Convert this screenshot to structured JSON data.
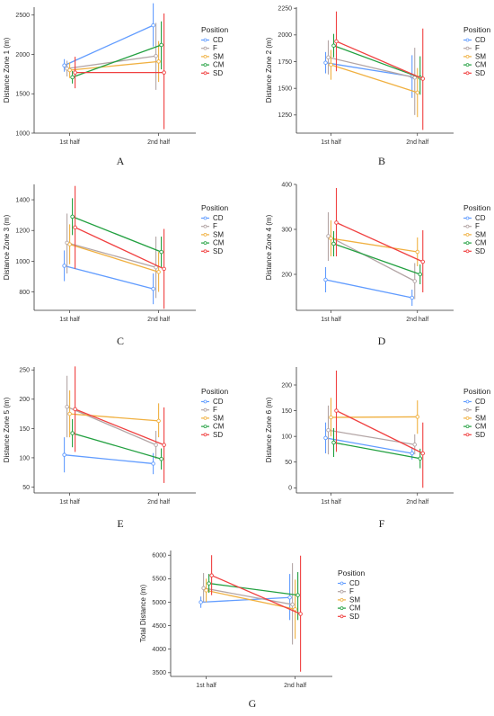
{
  "colors": {
    "CD": "#619CFF",
    "F": "#B3A5A5",
    "SM": "#F0B040",
    "CM": "#22A040",
    "SD": "#F04040"
  },
  "chart_data": [
    {
      "id": "A",
      "type": "line",
      "letter": "A",
      "ylabel": "Distance Zone 1 (m)",
      "categories": [
        "1st half",
        "2nd half"
      ],
      "ylim": [
        1000,
        2600
      ],
      "yticks": [
        1000,
        1500,
        2000,
        2500
      ],
      "legend_title": "Position",
      "legend_position": "right",
      "series": [
        {
          "name": "CD",
          "values": [
            1860,
            2370
          ],
          "err_low": [
            1780,
            2100
          ],
          "err_high": [
            1940,
            2650
          ]
        },
        {
          "name": "F",
          "values": [
            1820,
            1980
          ],
          "err_low": [
            1720,
            1550
          ],
          "err_high": [
            1920,
            2400
          ]
        },
        {
          "name": "SM",
          "values": [
            1800,
            1910
          ],
          "err_low": [
            1700,
            1650
          ],
          "err_high": [
            1900,
            2170
          ]
        },
        {
          "name": "CM",
          "values": [
            1710,
            2120
          ],
          "err_low": [
            1630,
            1810
          ],
          "err_high": [
            1790,
            2420
          ]
        },
        {
          "name": "SD",
          "values": [
            1770,
            1770
          ],
          "err_low": [
            1570,
            1050
          ],
          "err_high": [
            1970,
            2520
          ]
        }
      ]
    },
    {
      "id": "B",
      "type": "line",
      "letter": "B",
      "ylabel": "Distance Zone 2 (m)",
      "categories": [
        "1st half",
        "2nd half"
      ],
      "ylim": [
        1080,
        2260
      ],
      "yticks": [
        1250,
        1500,
        1750,
        2000,
        2250
      ],
      "legend_title": "Position",
      "legend_position": "right",
      "series": [
        {
          "name": "CD",
          "values": [
            1740,
            1610
          ],
          "err_low": [
            1640,
            1410
          ],
          "err_high": [
            1840,
            1810
          ]
        },
        {
          "name": "F",
          "values": [
            1790,
            1600
          ],
          "err_low": [
            1630,
            1250
          ],
          "err_high": [
            1950,
            1880
          ]
        },
        {
          "name": "SM",
          "values": [
            1720,
            1460
          ],
          "err_low": [
            1580,
            1230
          ],
          "err_high": [
            1860,
            1690
          ]
        },
        {
          "name": "CM",
          "values": [
            1900,
            1600
          ],
          "err_low": [
            1790,
            1440
          ],
          "err_high": [
            2010,
            1800
          ]
        },
        {
          "name": "SD",
          "values": [
            1940,
            1590
          ],
          "err_low": [
            1660,
            1110
          ],
          "err_high": [
            2220,
            2060
          ]
        }
      ]
    },
    {
      "id": "C",
      "type": "line",
      "letter": "C",
      "ylabel": "Distance Zone 3 (m)",
      "categories": [
        "1st half",
        "2nd half"
      ],
      "ylim": [
        680,
        1500
      ],
      "yticks": [
        800,
        1000,
        1200,
        1400
      ],
      "legend_title": "Position",
      "legend_position": "right",
      "series": [
        {
          "name": "CD",
          "values": [
            970,
            820
          ],
          "err_low": [
            870,
            720
          ],
          "err_high": [
            1070,
            920
          ]
        },
        {
          "name": "F",
          "values": [
            1120,
            960
          ],
          "err_low": [
            920,
            760
          ],
          "err_high": [
            1310,
            1160
          ]
        },
        {
          "name": "SM",
          "values": [
            1110,
            930
          ],
          "err_low": [
            980,
            800
          ],
          "err_high": [
            1240,
            1060
          ]
        },
        {
          "name": "CM",
          "values": [
            1290,
            1060
          ],
          "err_low": [
            1170,
            960
          ],
          "err_high": [
            1410,
            1160
          ]
        },
        {
          "name": "SD",
          "values": [
            1220,
            950
          ],
          "err_low": [
            950,
            690
          ],
          "err_high": [
            1490,
            1210
          ]
        }
      ]
    },
    {
      "id": "D",
      "type": "line",
      "letter": "D",
      "ylabel": "Distance Zone 4 (m)",
      "categories": [
        "1st half",
        "2nd half"
      ],
      "ylim": [
        120,
        400
      ],
      "yticks": [
        200,
        300,
        400
      ],
      "legend_title": "Position",
      "legend_position": "right",
      "series": [
        {
          "name": "CD",
          "values": [
            188,
            148
          ],
          "err_low": [
            160,
            130
          ],
          "err_high": [
            216,
            166
          ]
        },
        {
          "name": "F",
          "values": [
            285,
            185
          ],
          "err_low": [
            230,
            145
          ],
          "err_high": [
            338,
            225
          ]
        },
        {
          "name": "SM",
          "values": [
            280,
            250
          ],
          "err_low": [
            240,
            218
          ],
          "err_high": [
            320,
            282
          ]
        },
        {
          "name": "CM",
          "values": [
            268,
            200
          ],
          "err_low": [
            240,
            178
          ],
          "err_high": [
            296,
            222
          ]
        },
        {
          "name": "SD",
          "values": [
            315,
            228
          ],
          "err_low": [
            240,
            160
          ],
          "err_high": [
            392,
            298
          ]
        }
      ]
    },
    {
      "id": "E",
      "type": "line",
      "letter": "E",
      "ylabel": "Distance Zone 5 (m)",
      "categories": [
        "1st half",
        "2nd half"
      ],
      "ylim": [
        40,
        255
      ],
      "yticks": [
        50,
        100,
        150,
        200,
        250
      ],
      "legend_title": "Position",
      "legend_position": "right",
      "series": [
        {
          "name": "CD",
          "values": [
            105,
            90
          ],
          "err_low": [
            75,
            72
          ],
          "err_high": [
            135,
            108
          ]
        },
        {
          "name": "F",
          "values": [
            187,
            122
          ],
          "err_low": [
            135,
            98
          ],
          "err_high": [
            240,
            146
          ]
        },
        {
          "name": "SM",
          "values": [
            175,
            163
          ],
          "err_low": [
            135,
            135
          ],
          "err_high": [
            215,
            193
          ]
        },
        {
          "name": "CM",
          "values": [
            142,
            98
          ],
          "err_low": [
            118,
            80
          ],
          "err_high": [
            166,
            116
          ]
        },
        {
          "name": "SD",
          "values": [
            183,
            122
          ],
          "err_low": [
            110,
            57
          ],
          "err_high": [
            256,
            186
          ]
        }
      ]
    },
    {
      "id": "F",
      "type": "line",
      "letter": "F",
      "ylabel": "Distance Zone 6 (m)",
      "categories": [
        "1st half",
        "2nd half"
      ],
      "ylim": [
        -10,
        235
      ],
      "yticks": [
        0,
        50,
        100,
        150,
        200
      ],
      "legend_title": "Position",
      "legend_position": "right",
      "series": [
        {
          "name": "CD",
          "values": [
            97,
            67
          ],
          "err_low": [
            67,
            55
          ],
          "err_high": [
            127,
            79
          ]
        },
        {
          "name": "F",
          "values": [
            112,
            84
          ],
          "err_low": [
            65,
            65
          ],
          "err_high": [
            160,
            104
          ]
        },
        {
          "name": "SM",
          "values": [
            137,
            138
          ],
          "err_low": [
            100,
            105
          ],
          "err_high": [
            175,
            170
          ]
        },
        {
          "name": "CM",
          "values": [
            88,
            57
          ],
          "err_low": [
            60,
            38
          ],
          "err_high": [
            116,
            76
          ]
        },
        {
          "name": "SD",
          "values": [
            150,
            67
          ],
          "err_low": [
            70,
            0
          ],
          "err_high": [
            228,
            127
          ]
        }
      ]
    },
    {
      "id": "G",
      "type": "line",
      "letter": "G",
      "ylabel": "Total Distance (m)",
      "categories": [
        "1st half",
        "2nd half"
      ],
      "ylim": [
        3420,
        6100
      ],
      "yticks": [
        3500,
        4000,
        4500,
        5000,
        5500,
        6000
      ],
      "legend_title": "Position",
      "legend_position": "right",
      "series": [
        {
          "name": "CD",
          "values": [
            5000,
            5100
          ],
          "err_low": [
            4880,
            4620
          ],
          "err_high": [
            5120,
            5600
          ]
        },
        {
          "name": "F",
          "values": [
            5300,
            4950
          ],
          "err_low": [
            5000,
            4100
          ],
          "err_high": [
            5620,
            5830
          ]
        },
        {
          "name": "SM",
          "values": [
            5250,
            4850
          ],
          "err_low": [
            5000,
            4220
          ],
          "err_high": [
            5500,
            5480
          ]
        },
        {
          "name": "CM",
          "values": [
            5400,
            5150
          ],
          "err_low": [
            5200,
            4620
          ],
          "err_high": [
            5600,
            5640
          ]
        },
        {
          "name": "SD",
          "values": [
            5570,
            4750
          ],
          "err_low": [
            5150,
            3520
          ],
          "err_high": [
            6000,
            5990
          ]
        }
      ]
    }
  ]
}
